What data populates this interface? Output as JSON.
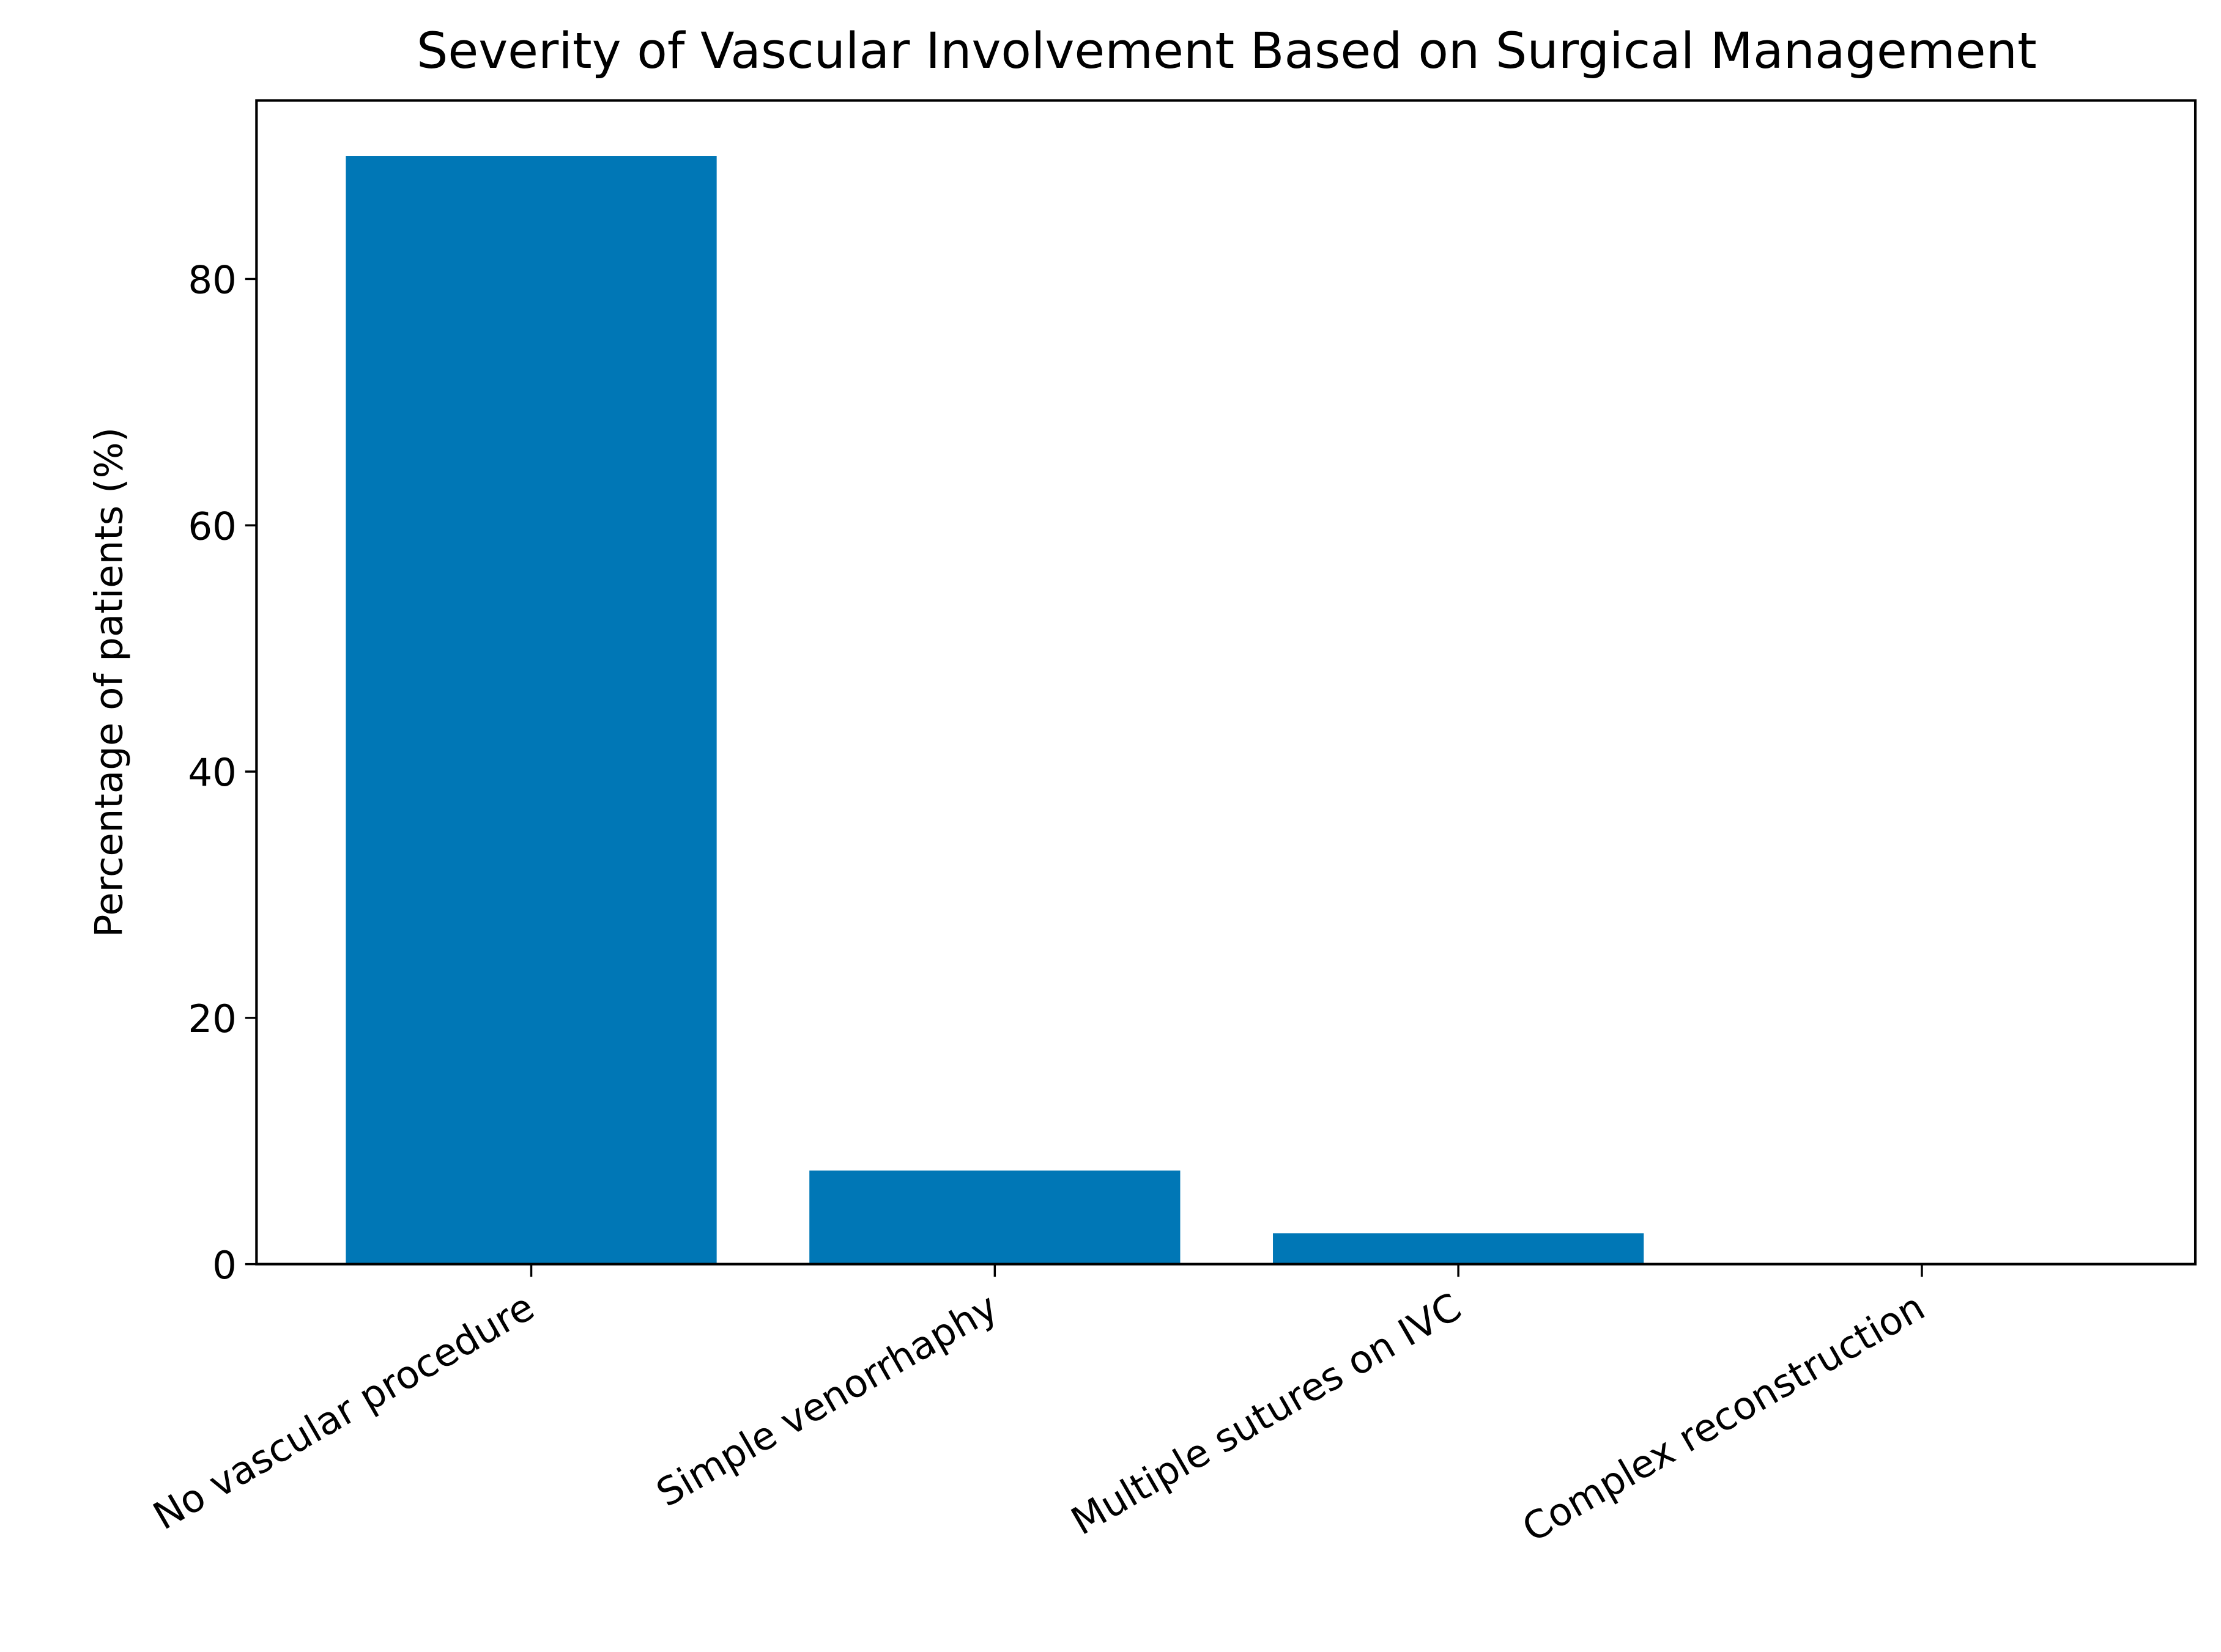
{
  "chart_data": {
    "type": "bar",
    "title": "Severity of Vascular Involvement Based on Surgical Management",
    "y_label": "Percentage of patients (%)",
    "categories": [
      "No vascular procedure",
      "Simple venorrhaphy",
      "Multiple sutures on IVC",
      "Complex reconstruction"
    ],
    "values": [
      90.0,
      7.6,
      2.5,
      0
    ],
    "color": "#0077b6",
    "ylim": [
      0,
      94.5
    ],
    "yticks": [
      0,
      20,
      40,
      60,
      80
    ],
    "grid": false
  }
}
